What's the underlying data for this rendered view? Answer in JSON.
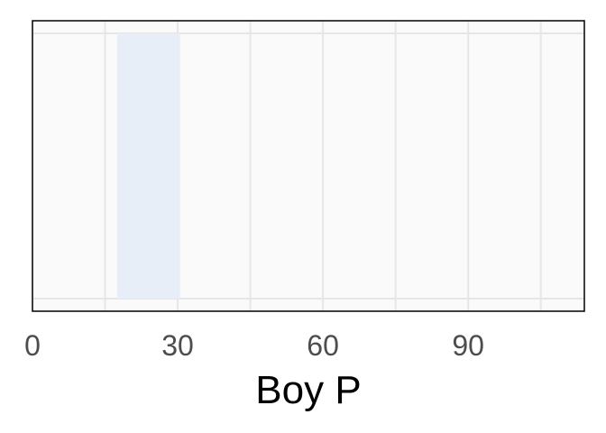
{
  "chart_data": {
    "type": "bar",
    "title": "",
    "xlabel": "Boy P",
    "ylabel": "",
    "xlim": [
      0,
      114
    ],
    "x_ticks": [
      0,
      30,
      60,
      90
    ],
    "x_minor_ticks": [
      15,
      45,
      75,
      105
    ],
    "bars": [
      {
        "x_start": 17.5,
        "x_end": 30.5
      }
    ],
    "grid": true,
    "legend": "none",
    "colors": {
      "panel_background": "#fafafa",
      "grid": "#e6e6e6",
      "bar_fill": "#e8eef8",
      "border": "#000000",
      "tick_text": "#4d4d4d"
    }
  }
}
